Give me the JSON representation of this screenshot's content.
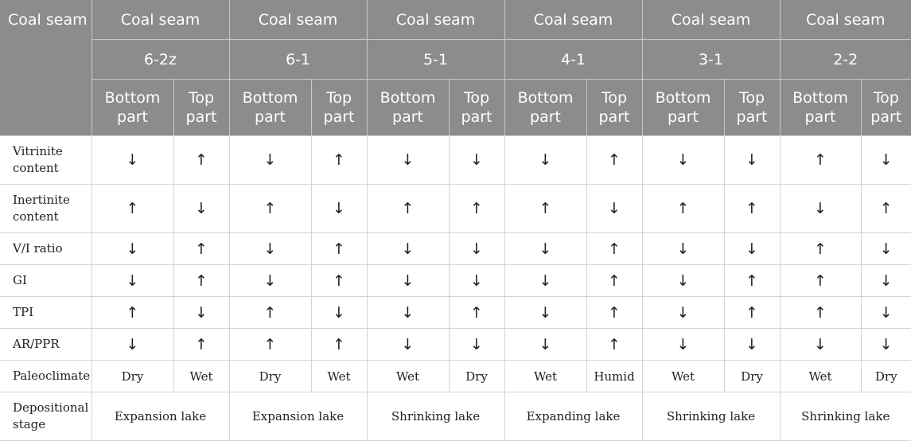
{
  "header": {
    "corner": "Coal seam",
    "seam_word": "Coal seam",
    "seams": [
      "6-2z",
      "6-1",
      "5-1",
      "4-1",
      "3-1",
      "2-2"
    ],
    "part_bottom": "Bottom part",
    "part_top": "Top part"
  },
  "rows": [
    {
      "label": "Vitrinite content",
      "values": [
        "↓",
        "↑",
        "↓",
        "↑",
        "↓",
        "↓",
        "↓",
        "↑",
        "↓",
        "↓",
        "↑",
        "↓"
      ]
    },
    {
      "label": "Inertinite content",
      "values": [
        "↑",
        "↓",
        "↑",
        "↓",
        "↑",
        "↑",
        "↑",
        "↓",
        "↑",
        "↑",
        "↓",
        "↑"
      ]
    },
    {
      "label": "V/I ratio",
      "values": [
        "↓",
        "↑",
        "↓",
        "↑",
        "↓",
        "↓",
        "↓",
        "↑",
        "↓",
        "↓",
        "↑",
        "↓"
      ]
    },
    {
      "label": "GI",
      "values": [
        "↓",
        "↑",
        "↓",
        "↑",
        "↓",
        "↓",
        "↓",
        "↑",
        "↓",
        "↑",
        "↑",
        "↓"
      ]
    },
    {
      "label": "TPI",
      "values": [
        "↑",
        "↓",
        "↑",
        "↓",
        "↓",
        "↑",
        "↓",
        "↑",
        "↓",
        "↑",
        "↑",
        "↓"
      ]
    },
    {
      "label": "AR/PPR",
      "values": [
        "↓",
        "↑",
        "↑",
        "↑",
        "↓",
        "↓",
        "↓",
        "↑",
        "↓",
        "↓",
        "↓",
        "↓"
      ]
    },
    {
      "label": "Paleoclimate",
      "values": [
        "Dry",
        "Wet",
        "Dry",
        "Wet",
        "Wet",
        "Dry",
        "Wet",
        "Humid",
        "Wet",
        "Dry",
        "Wet",
        "Dry"
      ]
    }
  ],
  "stage": {
    "label": "Depositional stage",
    "values": [
      "Expansion lake",
      "Expansion lake",
      "Shrinking lake",
      "Expanding lake",
      "Shrinking lake",
      "Shrinking lake"
    ]
  }
}
